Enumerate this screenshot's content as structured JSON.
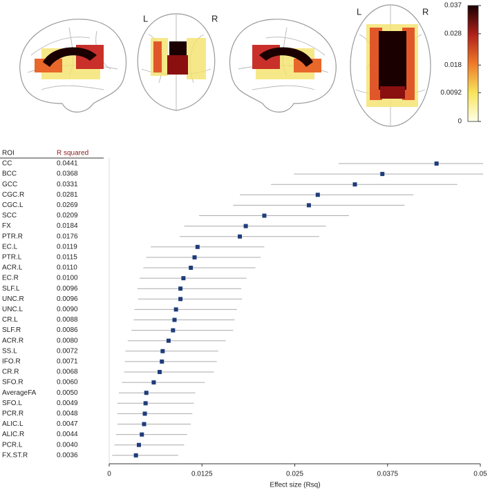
{
  "brain_maps": {
    "labels": [
      "L",
      "R",
      "L",
      "R"
    ],
    "colorbar": {
      "type": "colorbar",
      "lim": [
        0,
        0.037
      ],
      "ticks": [
        0,
        0.0092,
        0.018,
        0.028,
        0.037
      ]
    }
  },
  "chart_data": [
    {
      "type": "forest",
      "table_headers": [
        "ROI",
        "R squared"
      ],
      "categories": [
        "CC",
        "BCC",
        "GCC",
        "CGC.R",
        "CGC.L",
        "SCC",
        "FX",
        "PTR.R",
        "EC.L",
        "PTR.L",
        "ACR.L",
        "EC.R",
        "SLF.L",
        "UNC.R",
        "UNC.L",
        "CR.L",
        "SLF.R",
        "ACR.R",
        "SS.L",
        "IFO.R",
        "CR.R",
        "SFO.R",
        "AverageFA",
        "SFO.L",
        "PCR.R",
        "ALIC.L",
        "ALIC.R",
        "PCR.L",
        "FX.ST.R"
      ],
      "values": [
        0.0441,
        0.0368,
        0.0331,
        0.0281,
        0.0269,
        0.0209,
        0.0184,
        0.0176,
        0.0119,
        0.0115,
        0.011,
        0.01,
        0.0096,
        0.0096,
        0.009,
        0.0088,
        0.0086,
        0.008,
        0.0072,
        0.0071,
        0.0068,
        0.006,
        0.005,
        0.0049,
        0.0048,
        0.0047,
        0.0044,
        0.004,
        0.0036
      ],
      "value_labels": [
        "0.0441",
        "0.0368",
        "0.0331",
        "0.0281",
        "0.0269",
        "0.0209",
        "0.0184",
        "0.0176",
        "0.0119",
        "0.0115",
        "0.0110",
        "0.0100",
        "0.0096",
        "0.0096",
        "0.0090",
        "0.0088",
        "0.0086",
        "0.0080",
        "0.0072",
        "0.0071",
        "0.0068",
        "0.0060",
        "0.0050",
        "0.0049",
        "0.0048",
        "0.0047",
        "0.0044",
        "0.0040",
        "0.0036"
      ],
      "ci_low": [
        0.0309,
        0.0249,
        0.0218,
        0.0176,
        0.0167,
        0.0121,
        0.0101,
        0.0095,
        0.0056,
        0.005,
        0.0046,
        0.0041,
        0.0038,
        0.0039,
        0.0034,
        0.0033,
        0.003,
        0.0025,
        0.0022,
        0.0021,
        0.002,
        0.0017,
        0.0013,
        0.0011,
        0.0011,
        0.0011,
        0.0009,
        0.0007,
        0.0004
      ],
      "ci_high": [
        0.052,
        0.051,
        0.0469,
        0.041,
        0.0398,
        0.0323,
        0.0292,
        0.0283,
        0.0209,
        0.0204,
        0.0197,
        0.0185,
        0.0178,
        0.0179,
        0.0172,
        0.0169,
        0.0167,
        0.0157,
        0.0147,
        0.0145,
        0.0141,
        0.0129,
        0.0116,
        0.0114,
        0.0112,
        0.011,
        0.0105,
        0.0101,
        0.0093
      ],
      "color": "#1f3d7a",
      "ci_color": "#aaaaaa",
      "label_color": "#8b1a1a",
      "xlabel": "Effect size (Rsq)",
      "xlim": [
        0,
        0.05
      ],
      "xticks": [
        0,
        0.0125,
        0.025,
        0.0375,
        0.05
      ]
    }
  ]
}
